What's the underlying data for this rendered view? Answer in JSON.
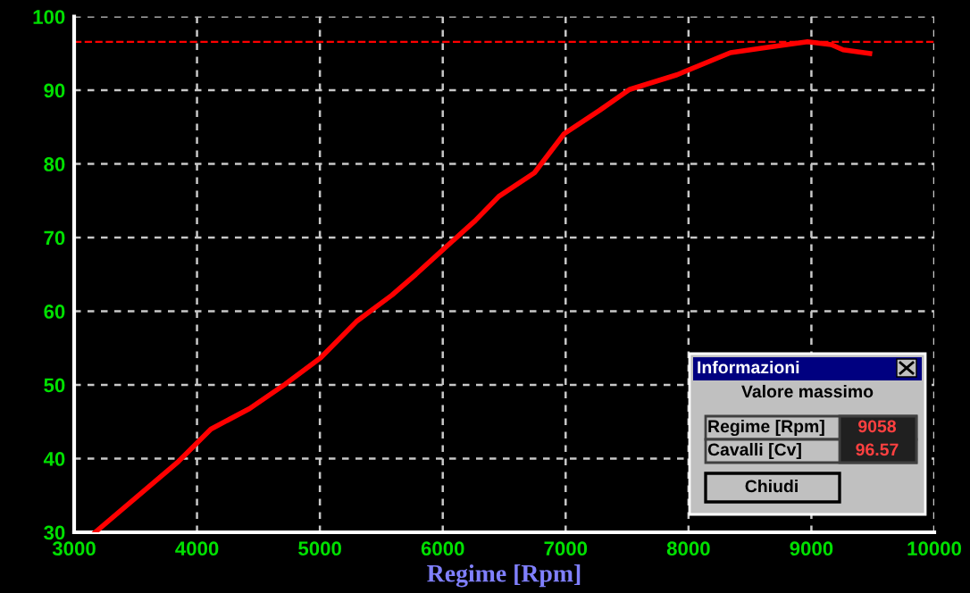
{
  "chart_data": {
    "type": "line",
    "xlabel": "Regime [Rpm]",
    "x": [
      3171,
      3848,
      4113,
      4428,
      4717,
      5007,
      5297,
      5587,
      5780,
      5997,
      6264,
      6457,
      6746,
      6988,
      7278,
      7519,
      7906,
      8341,
      8630,
      8968,
      9162,
      9258,
      9475
    ],
    "series": [
      {
        "color": "#ff0000",
        "values": [
          30.0,
          39.6,
          44.0,
          46.8,
          50.1,
          53.7,
          58.6,
          62.2,
          65.0,
          68.3,
          72.3,
          75.6,
          78.8,
          84.1,
          87.3,
          90.1,
          92.1,
          95.1,
          95.8,
          96.6,
          96.2,
          95.5,
          95.0
        ]
      }
    ],
    "xlim": [
      3000,
      10000
    ],
    "ylim": [
      30,
      100
    ],
    "xticks": [
      3000,
      4000,
      5000,
      6000,
      7000,
      8000,
      9000,
      10000
    ],
    "yticks": [
      30,
      40,
      50,
      60,
      70,
      80,
      90,
      100
    ],
    "grid": true,
    "line_style": "solid",
    "marker": "none",
    "ref_lines": [
      {
        "axis": "y",
        "value": 96.57,
        "color": "#ff0000",
        "line_style": "dashed"
      }
    ],
    "annotations": [
      "Informazioni",
      "Valore massimo",
      "Regime [Rpm]",
      "9058",
      "Cavalli [Cv]",
      "96.57",
      "Chiudi"
    ]
  }
}
